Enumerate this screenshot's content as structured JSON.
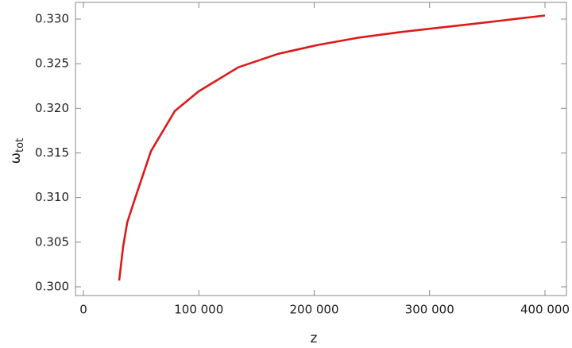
{
  "chart_data": {
    "type": "line",
    "xlabel": "z",
    "ylabel": "ω",
    "ylabel_subscript": "tot",
    "x": [
      31000,
      34400,
      37900,
      44750,
      58500,
      79200,
      99800,
      134250,
      168700,
      203100,
      237500,
      271900,
      306400,
      340800,
      400000
    ],
    "series": [
      {
        "name": "ω_tot",
        "color": "#dd1a1a",
        "values": [
          0.3007,
          0.3045,
          0.3072,
          0.3099,
          0.3152,
          0.3197,
          0.3219,
          0.3246,
          0.3261,
          0.3271,
          0.3279,
          0.3285,
          0.329,
          0.3295,
          0.3304
        ]
      }
    ],
    "xlim": [
      -6900,
      418600
    ],
    "ylim": [
      0.29902,
      0.33187
    ],
    "xticks": [
      0,
      {
        "value": 100000,
        "label": "100 000"
      },
      {
        "value": 200000,
        "label": "200 000"
      },
      {
        "value": 300000,
        "label": "300 000"
      },
      {
        "value": 400000,
        "label": "400 000"
      }
    ],
    "yticks": [
      {
        "value": 0.3,
        "label": "0.300"
      },
      0.305,
      {
        "value": 0.31,
        "label": "0.310"
      },
      0.315,
      {
        "value": 0.32,
        "label": "0.320"
      },
      0.325,
      {
        "value": 0.33,
        "label": "0.330"
      }
    ],
    "grid": false
  }
}
